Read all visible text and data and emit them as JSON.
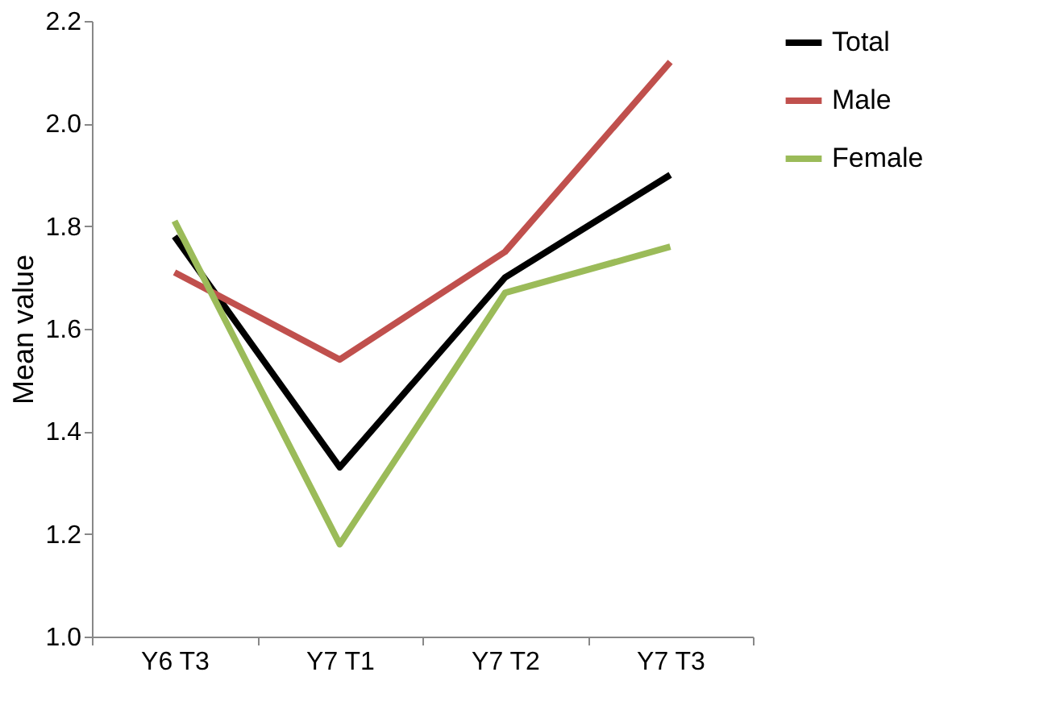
{
  "chart_data": {
    "type": "line",
    "ylabel": "Mean value",
    "categories": [
      "Y6 T3",
      "Y7 T1",
      "Y7 T2",
      "Y7 T3"
    ],
    "series": [
      {
        "name": "Total",
        "color": "#000000",
        "values": [
          1.78,
          1.33,
          1.7,
          1.9
        ]
      },
      {
        "name": "Male",
        "color": "#c0504d",
        "values": [
          1.71,
          1.54,
          1.75,
          2.12
        ]
      },
      {
        "name": "Female",
        "color": "#9bbb59",
        "values": [
          1.81,
          1.18,
          1.67,
          1.76
        ]
      }
    ],
    "ylim": [
      1.0,
      2.2
    ],
    "yticks": [
      {
        "value": 1.0,
        "label": "1.0"
      },
      1.2,
      1.4,
      1.6,
      1.8,
      {
        "value": 2.0,
        "label": "2.0"
      },
      2.2
    ],
    "grid": false,
    "legend": "right",
    "marker": "none",
    "line_style": "solid"
  }
}
